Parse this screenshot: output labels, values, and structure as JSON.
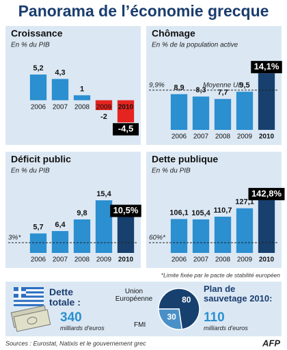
{
  "title": "Panorama de l’économie grecque",
  "chart_data": [
    {
      "type": "bar",
      "title": "Croissance",
      "subtitle": "En % du PIB",
      "categories": [
        "2006",
        "2007",
        "2008",
        "2009",
        "2010"
      ],
      "values": [
        5.2,
        4.3,
        1,
        -2,
        -4.5
      ],
      "value_labels": [
        "5,2",
        "4,3",
        "1",
        "-2",
        "-4,5"
      ],
      "colors": [
        "#2b8fd0",
        "#2b8fd0",
        "#2b8fd0",
        "#e52420",
        "#e52420"
      ],
      "ylim": [
        -6,
        7
      ],
      "highlight_last": true
    },
    {
      "type": "bar",
      "title": "Chômage",
      "subtitle": "En % de la population active",
      "categories": [
        "2006",
        "2007",
        "2008",
        "2009",
        "2010"
      ],
      "values": [
        8.9,
        8.3,
        7.7,
        9.5,
        14.1
      ],
      "value_labels": [
        "8,9",
        "8,3",
        "7,7",
        "9,5",
        "14,1%"
      ],
      "colors": [
        "#2b8fd0",
        "#2b8fd0",
        "#2b8fd0",
        "#2b8fd0",
        "#17406f"
      ],
      "ylim": [
        0,
        16
      ],
      "highlight_last": true,
      "reference": {
        "value": 9.9,
        "label": "9,9%",
        "name": "Moyenne UE"
      }
    },
    {
      "type": "bar",
      "title": "Déficit public",
      "subtitle": "En % du PIB",
      "categories": [
        "2006",
        "2007",
        "2008",
        "2009",
        "2010"
      ],
      "values": [
        5.7,
        6.4,
        9.8,
        15.4,
        10.5
      ],
      "value_labels": [
        "5,7",
        "6,4",
        "9,8",
        "15,4",
        "10,5%"
      ],
      "colors": [
        "#2b8fd0",
        "#2b8fd0",
        "#2b8fd0",
        "#2b8fd0",
        "#17406f"
      ],
      "ylim": [
        0,
        18
      ],
      "highlight_last": true,
      "reference": {
        "value": 3,
        "label": "3%*"
      }
    },
    {
      "type": "bar",
      "title": "Dette publique",
      "subtitle": "En % du PIB",
      "categories": [
        "2006",
        "2007",
        "2008",
        "2009",
        "2010"
      ],
      "values": [
        106.1,
        105.4,
        110.7,
        127.1,
        142.8
      ],
      "value_labels": [
        "106,1",
        "105,4",
        "110,7",
        "127,1",
        "142,8%"
      ],
      "colors": [
        "#2b8fd0",
        "#2b8fd0",
        "#2b8fd0",
        "#2b8fd0",
        "#17406f"
      ],
      "ylim": [
        40,
        160
      ],
      "highlight_last": true,
      "reference": {
        "value": 60,
        "label": "60%*"
      }
    },
    {
      "type": "pie",
      "title": "Plan de sauvetage 2010:",
      "total": 110,
      "unit": "milliards d'euros",
      "categories": [
        "Union Européenne",
        "FMI"
      ],
      "values": [
        80,
        30
      ],
      "colors": [
        "#17406f",
        "#4a90c8"
      ]
    }
  ],
  "footnote": "*Limite fixée par le pacte de stabilité européen",
  "total_debt": {
    "label": "Dette totale :",
    "value": 340,
    "unit": "milliards d'euros"
  },
  "source": "Sources : Eurostat, Natixis et le gouvernement grec",
  "credit": "AFP"
}
